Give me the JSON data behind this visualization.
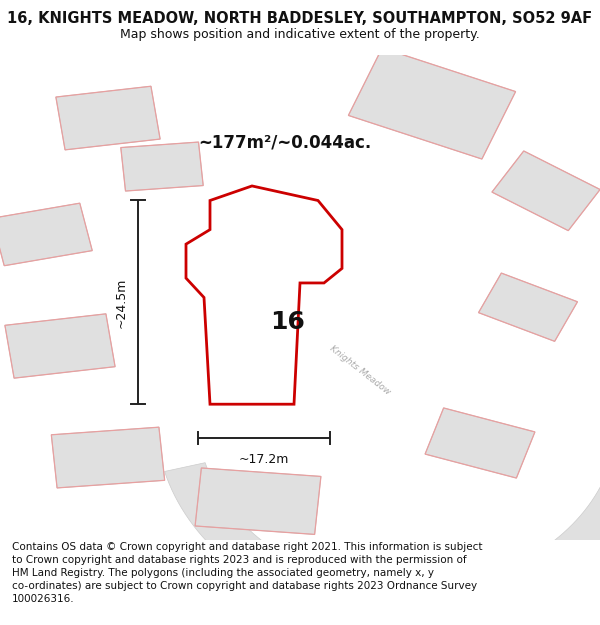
{
  "title": "16, KNIGHTS MEADOW, NORTH BADDESLEY, SOUTHAMPTON, SO52 9AF",
  "subtitle": "Map shows position and indicative extent of the property.",
  "footer": "Contains OS data © Crown copyright and database right 2021. This information is subject\nto Crown copyright and database rights 2023 and is reproduced with the permission of\nHM Land Registry. The polygons (including the associated geometry, namely x, y\nco-ordinates) are subject to Crown copyright and database rights 2023 Ordnance Survey\n100026316.",
  "area_label": "~177m²/~0.044ac.",
  "width_label": "~17.2m",
  "height_label": "~24.5m",
  "number_label": "16",
  "map_background": "#f0f0f0",
  "building_fill": "#e0e0e0",
  "building_stroke": "#c0c0c0",
  "other_stroke_light": "#e8a0a0",
  "subject_fill": "#ffffff",
  "subject_stroke": "#cc0000",
  "dim_color": "#222222",
  "road_color": "#cccccc",
  "road_text_color": "#aaaaaa",
  "title_fontsize": 10.5,
  "subtitle_fontsize": 9,
  "area_fontsize": 12,
  "number_fontsize": 18,
  "dim_fontsize": 9,
  "footer_fontsize": 7.5
}
